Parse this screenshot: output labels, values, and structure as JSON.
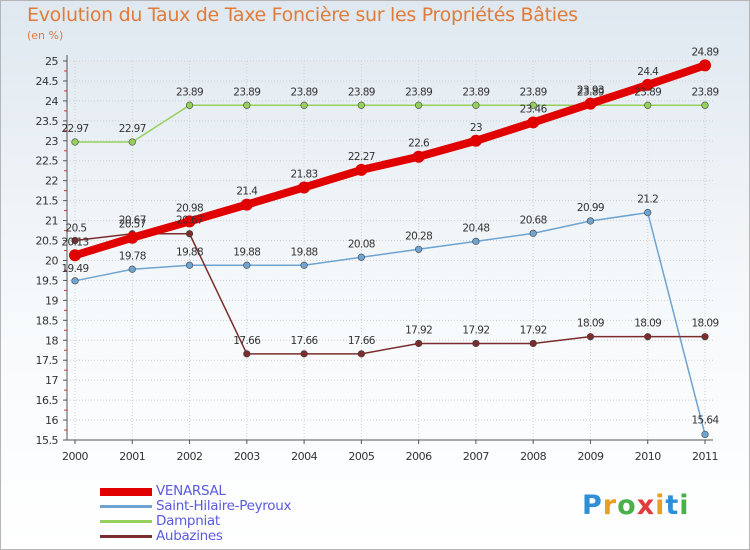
{
  "header": {
    "title": "Evolution du Taux de Taxe Foncière sur les Propriétés Bâties",
    "unit": "(en %)"
  },
  "logo": {
    "text": "Proxiti"
  },
  "colors": {
    "title": "#e07b39",
    "legend_text": "#5a5ae0",
    "grid": "#c8c8c8"
  },
  "chart_data": {
    "type": "line",
    "title": "Evolution du Taux de Taxe Foncière sur les Propriétés Bâties",
    "ylabel": "(en %)",
    "xlabel": "",
    "x": [
      "2000",
      "2001",
      "2002",
      "2003",
      "2004",
      "2005",
      "2006",
      "2007",
      "2008",
      "2009",
      "2010",
      "2011"
    ],
    "ylim": [
      15.5,
      25
    ],
    "yticks": [
      "15.5",
      "16",
      "16.5",
      "17",
      "17.5",
      "18",
      "18.5",
      "19",
      "19.5",
      "20",
      "20.5",
      "21",
      "21.5",
      "22",
      "22.5",
      "23",
      "23.5",
      "24",
      "24.5",
      "25"
    ],
    "grid": true,
    "legend_position": "bottom-left",
    "series": [
      {
        "name": "VENARSAL",
        "color": "#e00000",
        "values": [
          20.13,
          20.57,
          20.98,
          21.4,
          21.83,
          22.27,
          22.6,
          23,
          23.46,
          23.93,
          24.4,
          24.89
        ],
        "labels": [
          "20.13",
          "20.57",
          "20.98",
          "21.4",
          "21.83",
          "22.27",
          "22.6",
          "23",
          "23.46",
          "23.93",
          "24.4",
          "24.89"
        ]
      },
      {
        "name": "Saint-Hilaire-Peyroux",
        "color": "#6fa3d0",
        "values": [
          19.49,
          19.78,
          19.88,
          19.88,
          19.88,
          20.08,
          20.28,
          20.48,
          20.68,
          20.99,
          21.2,
          15.64
        ],
        "labels": [
          "19.49",
          "19.78",
          "19.88",
          "19.88",
          "19.88",
          "20.08",
          "20.28",
          "20.48",
          "20.68",
          "20.99",
          "21.2",
          "15.64"
        ]
      },
      {
        "name": "Dampniat",
        "color": "#95d05a",
        "values": [
          22.97,
          22.97,
          23.89,
          23.89,
          23.89,
          23.89,
          23.89,
          23.89,
          23.89,
          23.89,
          23.89,
          23.89
        ],
        "labels": [
          "22.97",
          "22.97",
          "23.89",
          "23.89",
          "23.89",
          "23.89",
          "23.89",
          "23.89",
          "23.89",
          "23.89",
          "23.89",
          "23.89"
        ]
      },
      {
        "name": "Aubazines",
        "color": "#7b2c2c",
        "values": [
          20.5,
          20.67,
          20.67,
          17.66,
          17.66,
          17.66,
          17.92,
          17.92,
          17.92,
          18.09,
          18.09,
          18.09
        ],
        "labels": [
          "20.5",
          "20.67",
          "20.67",
          "17.66",
          "17.66",
          "17.66",
          "17.92",
          "17.92",
          "17.92",
          "18.09",
          "18.09",
          "18.09"
        ]
      }
    ]
  }
}
